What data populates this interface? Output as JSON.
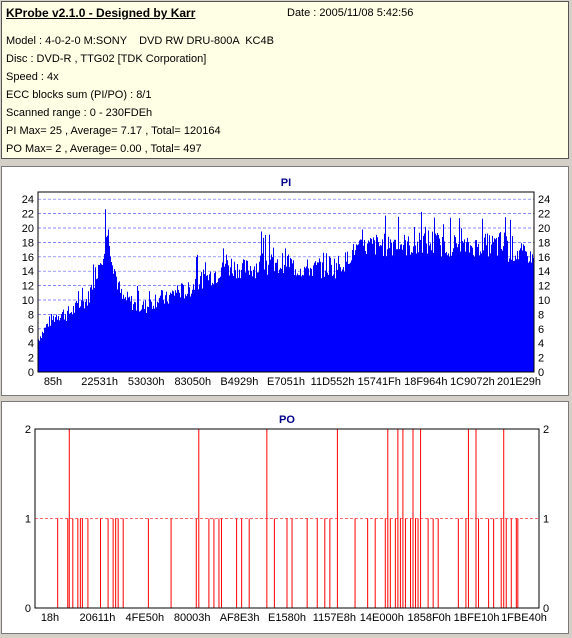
{
  "header": {
    "title": "KProbe v2.1.0 - Designed by Karr",
    "date": "Date : 2005/11/08 5:42:56",
    "lines": [
      "Model : 4-0-2-0 M:SONY    DVD RW DRU-800A  KC4B",
      "Disc : DVD-R , TTG02 [TDK Corporation]",
      "Speed : 4x",
      "ECC blocks sum (PI/PO) : 8/1",
      "Scanned range : 0 - 230FDEh",
      "PI Max= 25 , Average= 7.17 , Total= 120164",
      "PO Max= 2 , Average= 0.00 , Total= 497"
    ]
  },
  "chart_data": [
    {
      "type": "area",
      "title": "PI",
      "color": "#0000ff",
      "ylim": [
        0,
        25
      ],
      "yticks": [
        0,
        2,
        4,
        6,
        8,
        10,
        12,
        14,
        16,
        18,
        20,
        22,
        24
      ],
      "xlabels": [
        "85h",
        "22531h",
        "53030h",
        "83050h",
        "B4929h",
        "E7051h",
        "11D552h",
        "15741Fh",
        "18F964h",
        "1C9072h",
        "201E29h"
      ],
      "x": [
        0.0,
        0.02,
        0.04,
        0.06,
        0.08,
        0.1,
        0.12,
        0.13,
        0.14,
        0.15,
        0.16,
        0.17,
        0.18,
        0.2,
        0.22,
        0.24,
        0.26,
        0.28,
        0.3,
        0.32,
        0.34,
        0.36,
        0.37,
        0.4,
        0.42,
        0.44,
        0.46,
        0.48,
        0.5,
        0.52,
        0.54,
        0.56,
        0.58,
        0.6,
        0.62,
        0.64,
        0.66,
        0.68,
        0.7,
        0.72,
        0.74,
        0.76,
        0.78,
        0.8,
        0.82,
        0.84,
        0.86,
        0.88,
        0.9,
        0.92,
        0.94,
        0.96,
        0.98,
        1.0
      ],
      "avg": [
        4,
        6,
        7,
        7,
        8,
        9,
        13,
        15,
        18,
        14,
        11,
        9,
        9,
        8,
        8,
        9,
        9,
        10,
        10,
        11,
        12,
        12,
        13,
        13,
        13,
        13,
        13,
        13,
        14,
        13,
        13,
        13,
        13,
        13,
        14,
        16,
        16,
        16,
        16,
        16,
        16,
        16,
        16,
        16,
        16,
        16,
        16,
        16,
        16,
        16,
        15,
        15,
        15,
        15
      ],
      "max": [
        6,
        9,
        11,
        11,
        12,
        13,
        19,
        22,
        24,
        20,
        16,
        13,
        13,
        12,
        12,
        14,
        13,
        15,
        14,
        17,
        16,
        19,
        22,
        18,
        18,
        19,
        21,
        18,
        20,
        18,
        18,
        18,
        20,
        19,
        19,
        20,
        21,
        22,
        22,
        24,
        22,
        21,
        24,
        23,
        21,
        22,
        21,
        21,
        22,
        22,
        24,
        22,
        20,
        18
      ],
      "right_axis": true
    },
    {
      "type": "bar",
      "title": "PO",
      "color": "#ff0000",
      "ylim": [
        0,
        2
      ],
      "yticks": [
        0,
        1,
        2
      ],
      "xlabels": [
        "18h",
        "20611h",
        "4FE50h",
        "80003h",
        "AF8E3h",
        "E1580h",
        "1157E8h",
        "14E000h",
        "1858F0h",
        "1BFE10h",
        "1FBE40h"
      ],
      "spikes": [
        [
          0.045,
          1
        ],
        [
          0.065,
          1
        ],
        [
          0.068,
          2
        ],
        [
          0.075,
          1
        ],
        [
          0.085,
          1
        ],
        [
          0.09,
          1
        ],
        [
          0.094,
          1
        ],
        [
          0.105,
          1
        ],
        [
          0.13,
          1
        ],
        [
          0.145,
          1
        ],
        [
          0.155,
          1
        ],
        [
          0.16,
          1
        ],
        [
          0.165,
          1
        ],
        [
          0.175,
          1
        ],
        [
          0.225,
          1
        ],
        [
          0.27,
          1
        ],
        [
          0.32,
          1
        ],
        [
          0.325,
          2
        ],
        [
          0.345,
          1
        ],
        [
          0.355,
          1
        ],
        [
          0.365,
          1
        ],
        [
          0.37,
          1
        ],
        [
          0.4,
          1
        ],
        [
          0.41,
          1
        ],
        [
          0.425,
          1
        ],
        [
          0.46,
          2
        ],
        [
          0.475,
          1
        ],
        [
          0.5,
          1
        ],
        [
          0.51,
          1
        ],
        [
          0.54,
          1
        ],
        [
          0.56,
          1
        ],
        [
          0.575,
          1
        ],
        [
          0.585,
          1
        ],
        [
          0.6,
          2
        ],
        [
          0.635,
          1
        ],
        [
          0.66,
          1
        ],
        [
          0.675,
          1
        ],
        [
          0.695,
          1
        ],
        [
          0.7,
          2
        ],
        [
          0.705,
          1
        ],
        [
          0.715,
          1
        ],
        [
          0.72,
          2
        ],
        [
          0.725,
          1
        ],
        [
          0.73,
          2
        ],
        [
          0.735,
          1
        ],
        [
          0.745,
          1
        ],
        [
          0.75,
          2
        ],
        [
          0.755,
          1
        ],
        [
          0.76,
          1
        ],
        [
          0.765,
          2
        ],
        [
          0.78,
          1
        ],
        [
          0.79,
          1
        ],
        [
          0.8,
          1
        ],
        [
          0.84,
          1
        ],
        [
          0.855,
          1
        ],
        [
          0.86,
          2
        ],
        [
          0.875,
          2
        ],
        [
          0.88,
          1
        ],
        [
          0.9,
          1
        ],
        [
          0.91,
          1
        ],
        [
          0.925,
          1
        ],
        [
          0.93,
          2
        ],
        [
          0.935,
          1
        ],
        [
          0.945,
          1
        ],
        [
          0.955,
          1
        ],
        [
          0.958,
          1
        ]
      ],
      "right_axis": true
    }
  ]
}
